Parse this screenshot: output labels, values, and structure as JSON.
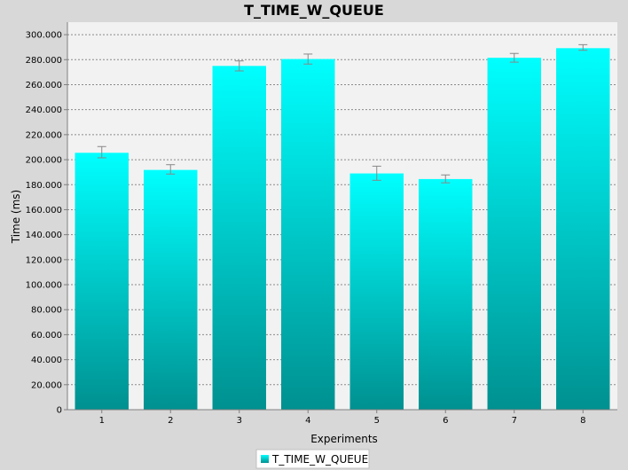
{
  "chart_data": {
    "type": "bar",
    "title": "T_TIME_W_QUEUE",
    "xlabel": "Experiments",
    "ylabel": "Time (ms)",
    "categories": [
      "1",
      "2",
      "3",
      "4",
      "5",
      "6",
      "7",
      "8"
    ],
    "series": [
      {
        "name": "T_TIME_W_QUEUE",
        "values": [
          205500,
          191800,
          275000,
          280500,
          189000,
          184500,
          281500,
          289200
        ],
        "error_low": [
          201500,
          188500,
          271000,
          276500,
          183500,
          181500,
          278000,
          287500
        ],
        "error_high": [
          210500,
          196000,
          279000,
          284500,
          194800,
          187800,
          285000,
          292000
        ]
      }
    ],
    "ylim": [
      0,
      310000
    ],
    "yticks": [
      0,
      20000,
      40000,
      60000,
      80000,
      100000,
      120000,
      140000,
      160000,
      180000,
      200000,
      220000,
      240000,
      260000,
      280000,
      300000
    ],
    "ytick_labels": [
      "0",
      "20.000",
      "40.000",
      "60.000",
      "80.000",
      "100.000",
      "120.000",
      "140.000",
      "160.000",
      "180.000",
      "200.000",
      "220.000",
      "240.000",
      "260.000",
      "280.000",
      "300.000"
    ],
    "grid": true,
    "legend_position": "bottom-center",
    "colors": {
      "bar_top": "#00ffff",
      "bar_bottom": "#009090",
      "plot_background": "#f2f2f2",
      "page_background": "#d8d8d8",
      "grid": "#8a8a8a",
      "error_bar": "#888888"
    }
  }
}
